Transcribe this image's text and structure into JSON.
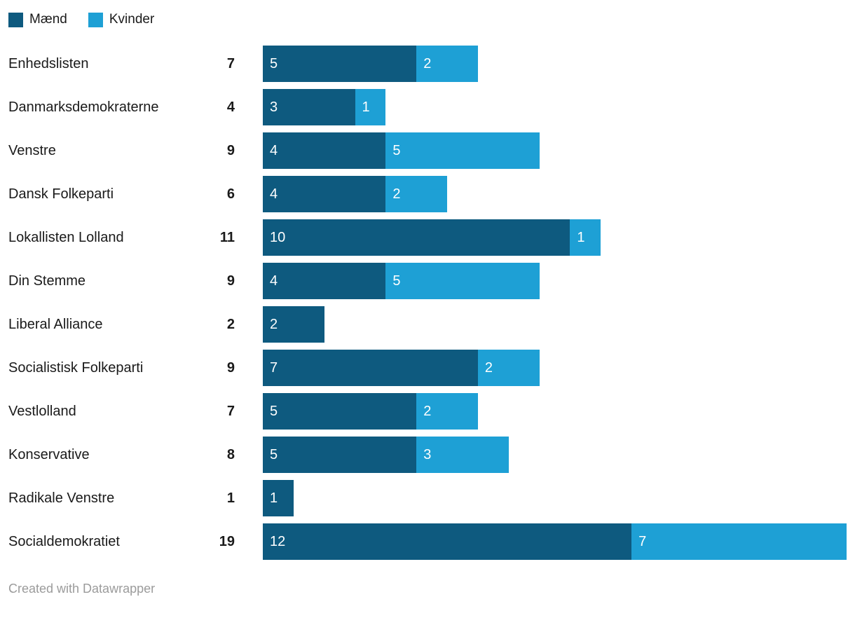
{
  "legend": {
    "items": [
      {
        "label": "Mænd",
        "color": "#0e5a7f"
      },
      {
        "label": "Kvinder",
        "color": "#1ea0d5"
      }
    ]
  },
  "footer": {
    "text": "Created with Datawrapper"
  },
  "chart_data": {
    "type": "bar",
    "orientation": "horizontal",
    "stacked": true,
    "title": "",
    "xlabel": "",
    "ylabel": "",
    "grid": false,
    "legend_position": "top",
    "xmax": 19,
    "categories": [
      "Enhedslisten",
      "Danmarksdemokraterne",
      "Venstre",
      "Dansk Folkeparti",
      "Lokallisten Lolland",
      "Din Stemme",
      "Liberal Alliance",
      "Socialistisk Folkeparti",
      "Vestlolland",
      "Konservative",
      "Radikale Venstre",
      "Socialdemokratiet"
    ],
    "totals": [
      7,
      4,
      9,
      6,
      11,
      9,
      2,
      9,
      7,
      8,
      1,
      19
    ],
    "series": [
      {
        "name": "Mænd",
        "color": "#0e5a7f",
        "values": [
          5,
          3,
          4,
          4,
          10,
          4,
          2,
          7,
          5,
          5,
          1,
          12
        ]
      },
      {
        "name": "Kvinder",
        "color": "#1ea0d5",
        "values": [
          2,
          1,
          5,
          2,
          1,
          5,
          0,
          2,
          2,
          3,
          0,
          7
        ]
      }
    ]
  }
}
